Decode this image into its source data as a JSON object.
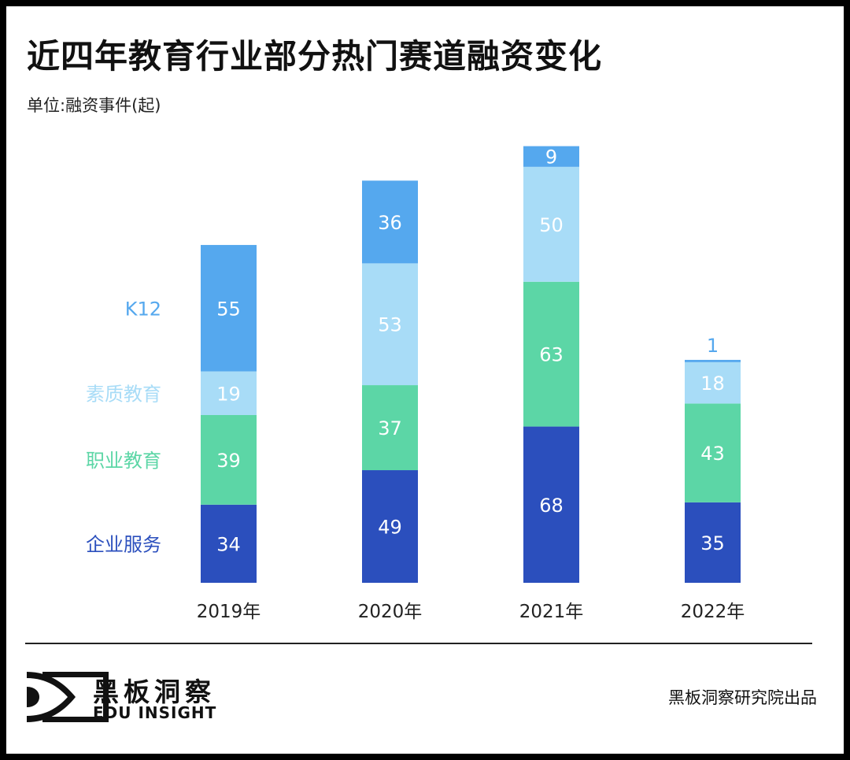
{
  "title": "近四年教育行业部分热门赛道融资变化",
  "unit_label": "单位:融资事件(起)",
  "footer": {
    "brand_cn": "黑板洞察",
    "brand_en": "EDU INSIGHT",
    "source": "黑板洞察研究院出品"
  },
  "chart_data": {
    "type": "bar",
    "stacked": true,
    "title": "近四年教育行业部分热门赛道融资变化",
    "ylabel": "单位:融资事件(起)",
    "categories": [
      "2019年",
      "2020年",
      "2021年",
      "2022年"
    ],
    "legend_placement": "left",
    "grid": false,
    "series": [
      {
        "name": "企业服务",
        "color": "#2b4fbd",
        "values": [
          34,
          49,
          68,
          35
        ]
      },
      {
        "name": "职业教育",
        "color": "#5cd6a6",
        "values": [
          39,
          37,
          63,
          43
        ]
      },
      {
        "name": "素质教育",
        "color": "#a8dcf7",
        "values": [
          19,
          53,
          50,
          18
        ]
      },
      {
        "name": "K12",
        "color": "#55a8ee",
        "values": [
          55,
          36,
          9,
          1
        ]
      }
    ]
  }
}
